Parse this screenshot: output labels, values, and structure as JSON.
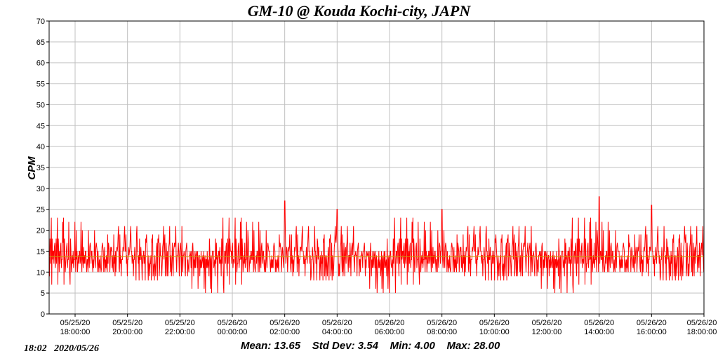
{
  "chart_data": {
    "type": "line",
    "title": "GM-10 @ Kouda Kochi-city, JAPN",
    "xlabel": "",
    "ylabel": "CPM",
    "ylim": [
      0,
      70
    ],
    "yticks": [
      0,
      5,
      10,
      15,
      20,
      25,
      30,
      35,
      40,
      45,
      50,
      55,
      60,
      65,
      70
    ],
    "xticks": [
      {
        "date": "05/25/20",
        "time": "18:00:00"
      },
      {
        "date": "05/25/20",
        "time": "20:00:00"
      },
      {
        "date": "05/25/20",
        "time": "22:00:00"
      },
      {
        "date": "05/26/20",
        "time": "00:00:00"
      },
      {
        "date": "05/26/20",
        "time": "02:00:00"
      },
      {
        "date": "05/26/20",
        "time": "04:00:00"
      },
      {
        "date": "05/26/20",
        "time": "06:00:00"
      },
      {
        "date": "05/26/20",
        "time": "08:00:00"
      },
      {
        "date": "05/26/20",
        "time": "10:00:00"
      },
      {
        "date": "05/26/20",
        "time": "12:00:00"
      },
      {
        "date": "05/26/20",
        "time": "14:00:00"
      },
      {
        "date": "05/26/20",
        "time": "16:00:00"
      },
      {
        "date": "05/26/20",
        "time": "18:00:00"
      }
    ],
    "grid": true,
    "series": [
      {
        "color": "#ff0000",
        "x_start": "05/25/20 17:05",
        "x_end": "05/26/20 18:02",
        "sample_interval_minutes": 1,
        "values": [
          13,
          15,
          11,
          14,
          16,
          12,
          13,
          9,
          14,
          17,
          12,
          15,
          10,
          13,
          18,
          11,
          14,
          8,
          16,
          13,
          22,
          12,
          15,
          9,
          14,
          19,
          11,
          13,
          17,
          6,
          15,
          12,
          21,
          14,
          10,
          23,
          13,
          16,
          9,
          15,
          11,
          20,
          7,
          14,
          17,
          12,
          15,
          10,
          13,
          18,
          5,
          14,
          16,
          12,
          19,
          11,
          15,
          13,
          9,
          17,
          14,
          12,
          16,
          10,
          15,
          13,
          21,
          8,
          14,
          17,
          12,
          15,
          11,
          13,
          18,
          9,
          16,
          14,
          12,
          15,
          10,
          17,
          13,
          15,
          12,
          16,
          11,
          14,
          19,
          13,
          10,
          15,
          17,
          12,
          14,
          9,
          16,
          13,
          15,
          11
        ],
        "highlights": {
          "min": 4.0,
          "max": 28.0
        },
        "notable_spikes": [
          {
            "time": "05/26/20 02:00",
            "value": 27
          },
          {
            "time": "05/26/20 04:00",
            "value": 25
          },
          {
            "time": "05/26/20 08:00",
            "value": 25
          },
          {
            "time": "05/26/20 14:00",
            "value": 28
          },
          {
            "time": "05/26/20 16:00",
            "value": 26
          }
        ]
      },
      {
        "color": "#c8a000",
        "kind": "mean-line",
        "value": 13.65
      }
    ]
  },
  "stats": {
    "mean_label": "Mean: 13.65",
    "std_label": "Std Dev: 3.54",
    "min_label": "Min: 4.00",
    "max_label": "Max: 28.00"
  },
  "timestamp": "18:02   2020/05/26",
  "colors": {
    "background": "#ffffff",
    "grid": "#c0c0c0",
    "trace": "#ff0000",
    "mean": "#c8a000",
    "axis": "#000000"
  }
}
